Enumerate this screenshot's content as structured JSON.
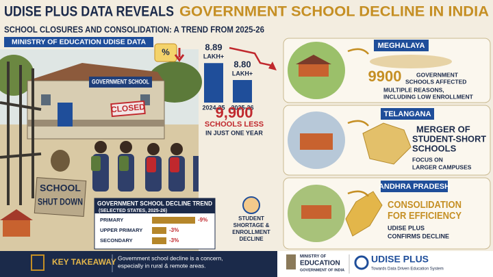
{
  "header": {
    "title_part1": "UDISE PLUS DATA REVEALS",
    "title_part2": "GOVERNMENT SCHOOL DECLINE IN INDIA",
    "subtitle": "SCHOOL CLOSURES AND CONSOLIDATION: A TREND FROM 2025-26",
    "source_tag": "MINISTRY OF EDUCATION UDISE DATA"
  },
  "illustration": {
    "school_sign": "GOVERNMENT SCHOOL",
    "closed_sign": "CLOSED",
    "shutdown_sign": [
      "SCHOOL",
      "SHUT DOWN"
    ]
  },
  "enrollment_chart": {
    "type": "bar",
    "categories": [
      "2024-25",
      "2025-26"
    ],
    "values": [
      8.89,
      8.8
    ],
    "value_labels": [
      "8.89",
      "8.80"
    ],
    "unit_labels": [
      "LAKH+",
      "LAKH+"
    ],
    "ylim": [
      8.68,
      8.92
    ],
    "color": "#1f4e9a"
  },
  "decline_summary": {
    "value": 9900,
    "value_label": "9,900",
    "lines": [
      "SCHOOLS LESS",
      "IN JUST ONE YEAR"
    ]
  },
  "trend_chart": {
    "type": "bar",
    "title": "GOVERNMENT SCHOOL DECLINE TREND",
    "subtitle": "(SELECTED STATES, 2025-26)",
    "categories": [
      "PRIMARY",
      "UPPER PRIMARY",
      "SECONDARY"
    ],
    "values": [
      -9,
      -3,
      -3
    ],
    "value_labels": [
      "-9%",
      "-3%",
      "-3%"
    ],
    "xlim": [
      0,
      -10
    ],
    "color": "#b5862a"
  },
  "student_note": [
    "STUDENT",
    "SHORTAGE &",
    "ENROLLMENT",
    "DECLINE"
  ],
  "states": [
    {
      "name": "MEGHALAYA",
      "headline": "9900",
      "headline_note": [
        "GOVERNMENT",
        "SCHOOLS AFFECTED"
      ],
      "details": [
        "MULTIPLE REASONS,",
        "INCLUDING LOW ENROLLMENT"
      ]
    },
    {
      "name": "TELANGANA",
      "headline_lines": [
        "MERGER OF",
        "STUDENT-SHORT",
        "SCHOOLS"
      ],
      "details": [
        "FOCUS ON",
        "LARGER CAMPUSES"
      ]
    },
    {
      "name": "ANDHRA PRADESH",
      "headline_lines": [
        "CONSOLIDATION",
        "FOR EFFICIENCY"
      ],
      "details": [
        "UDISE PLUS",
        "CONFIRMS DECLINE"
      ]
    }
  ],
  "footer": {
    "key_label": "KEY TAKEAWAY",
    "key_text": [
      "Government school decline is a concern,",
      "especially in rural & remote areas."
    ],
    "ministry": [
      "MINISTRY OF",
      "EDUCATION",
      "GOVERNMENT OF INDIA"
    ],
    "udise_name": "UDISE PLUS",
    "udise_tagline": "Towards Data Driven Education System"
  }
}
